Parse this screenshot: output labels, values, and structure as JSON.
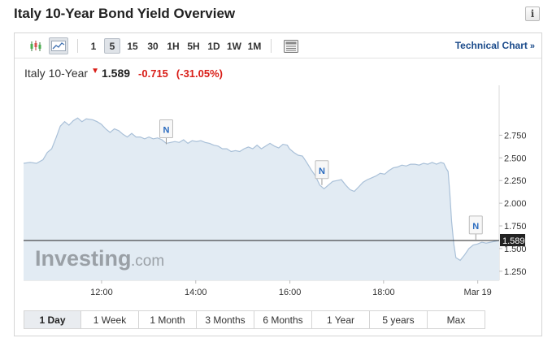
{
  "page": {
    "title": "Italy 10-Year Bond Yield Overview"
  },
  "info_button": {
    "label": "i"
  },
  "toolbar": {
    "chart_styles": [
      "candlestick-icon",
      "area-chart-icon"
    ],
    "ranges": [
      {
        "label": "1",
        "active": false
      },
      {
        "label": "5",
        "active": true
      },
      {
        "label": "15",
        "active": false
      },
      {
        "label": "30",
        "active": false
      },
      {
        "label": "1H",
        "active": false
      },
      {
        "label": "5H",
        "active": false
      },
      {
        "label": "1D",
        "active": false
      },
      {
        "label": "1W",
        "active": false
      },
      {
        "label": "1M",
        "active": false
      }
    ],
    "technical_chart_label": "Technical Chart",
    "technical_chart_chevron": "»"
  },
  "quote": {
    "name": "Italy 10-Year",
    "arrow": "▼",
    "price": "1.589",
    "change": "-0.715",
    "change_pct": "(-31.05%)"
  },
  "watermark": {
    "brand": "Investing",
    "suffix": ".com"
  },
  "chart_data": {
    "type": "area",
    "ylim": [
      1.15,
      3.3
    ],
    "y_ticks": [
      "2.750",
      "2.500",
      "2.250",
      "2.000",
      "1.750",
      "1.500",
      "1.250"
    ],
    "y_tick_values": [
      2.75,
      2.5,
      2.25,
      2.0,
      1.75,
      1.5,
      1.25
    ],
    "x_ticks": [
      "12:00",
      "14:00",
      "16:00",
      "18:00",
      "Mar 19"
    ],
    "x_tick_positions": [
      0.164,
      0.362,
      0.56,
      0.757,
      0.955
    ],
    "current_value": 1.589,
    "current_label": "1.589",
    "news_markers": [
      {
        "label": "N",
        "x": 0.33,
        "y": 2.65
      },
      {
        "label": "N",
        "x": 0.69,
        "y": 2.2
      },
      {
        "label": "N",
        "x": 1.046,
        "y": 1.59
      }
    ],
    "series": [
      {
        "values": [
          [
            0.0,
            2.44
          ],
          [
            0.015,
            2.45
          ],
          [
            0.03,
            2.44
          ],
          [
            0.045,
            2.48
          ],
          [
            0.055,
            2.56
          ],
          [
            0.065,
            2.6
          ],
          [
            0.075,
            2.72
          ],
          [
            0.085,
            2.85
          ],
          [
            0.095,
            2.9
          ],
          [
            0.105,
            2.86
          ],
          [
            0.115,
            2.91
          ],
          [
            0.125,
            2.94
          ],
          [
            0.135,
            2.9
          ],
          [
            0.145,
            2.93
          ],
          [
            0.16,
            2.92
          ],
          [
            0.17,
            2.9
          ],
          [
            0.18,
            2.87
          ],
          [
            0.19,
            2.82
          ],
          [
            0.2,
            2.78
          ],
          [
            0.21,
            2.82
          ],
          [
            0.22,
            2.8
          ],
          [
            0.23,
            2.76
          ],
          [
            0.24,
            2.73
          ],
          [
            0.25,
            2.77
          ],
          [
            0.26,
            2.73
          ],
          [
            0.27,
            2.73
          ],
          [
            0.28,
            2.71
          ],
          [
            0.29,
            2.73
          ],
          [
            0.3,
            2.71
          ],
          [
            0.31,
            2.72
          ],
          [
            0.32,
            2.7
          ],
          [
            0.33,
            2.66
          ],
          [
            0.34,
            2.67
          ],
          [
            0.35,
            2.68
          ],
          [
            0.36,
            2.67
          ],
          [
            0.37,
            2.7
          ],
          [
            0.38,
            2.66
          ],
          [
            0.39,
            2.69
          ],
          [
            0.4,
            2.68
          ],
          [
            0.41,
            2.69
          ],
          [
            0.42,
            2.67
          ],
          [
            0.43,
            2.66
          ],
          [
            0.44,
            2.64
          ],
          [
            0.45,
            2.63
          ],
          [
            0.46,
            2.6
          ],
          [
            0.47,
            2.6
          ],
          [
            0.48,
            2.57
          ],
          [
            0.49,
            2.58
          ],
          [
            0.5,
            2.57
          ],
          [
            0.51,
            2.6
          ],
          [
            0.52,
            2.62
          ],
          [
            0.53,
            2.6
          ],
          [
            0.54,
            2.64
          ],
          [
            0.55,
            2.6
          ],
          [
            0.56,
            2.63
          ],
          [
            0.57,
            2.66
          ],
          [
            0.58,
            2.63
          ],
          [
            0.59,
            2.61
          ],
          [
            0.6,
            2.65
          ],
          [
            0.61,
            2.64
          ],
          [
            0.615,
            2.6
          ],
          [
            0.625,
            2.56
          ],
          [
            0.635,
            2.53
          ],
          [
            0.645,
            2.52
          ],
          [
            0.655,
            2.45
          ],
          [
            0.665,
            2.37
          ],
          [
            0.675,
            2.3
          ],
          [
            0.685,
            2.2
          ],
          [
            0.695,
            2.16
          ],
          [
            0.705,
            2.2
          ],
          [
            0.715,
            2.24
          ],
          [
            0.725,
            2.25
          ],
          [
            0.735,
            2.26
          ],
          [
            0.745,
            2.2
          ],
          [
            0.755,
            2.15
          ],
          [
            0.765,
            2.13
          ],
          [
            0.775,
            2.18
          ],
          [
            0.785,
            2.23
          ],
          [
            0.795,
            2.26
          ],
          [
            0.805,
            2.28
          ],
          [
            0.815,
            2.3
          ],
          [
            0.825,
            2.33
          ],
          [
            0.835,
            2.32
          ],
          [
            0.845,
            2.36
          ],
          [
            0.855,
            2.39
          ],
          [
            0.865,
            2.4
          ],
          [
            0.875,
            2.42
          ],
          [
            0.885,
            2.41
          ],
          [
            0.895,
            2.43
          ],
          [
            0.905,
            2.43
          ],
          [
            0.915,
            2.42
          ],
          [
            0.925,
            2.44
          ],
          [
            0.935,
            2.43
          ],
          [
            0.945,
            2.45
          ],
          [
            0.955,
            2.43
          ],
          [
            0.965,
            2.45
          ],
          [
            0.972,
            2.44
          ],
          [
            0.978,
            2.38
          ],
          [
            0.982,
            2.35
          ],
          [
            0.986,
            2.1
          ],
          [
            0.99,
            1.8
          ],
          [
            0.995,
            1.55
          ],
          [
            1.0,
            1.4
          ],
          [
            1.01,
            1.37
          ],
          [
            1.02,
            1.43
          ],
          [
            1.03,
            1.5
          ],
          [
            1.04,
            1.54
          ],
          [
            1.05,
            1.55
          ],
          [
            1.06,
            1.57
          ],
          [
            1.07,
            1.56
          ],
          [
            1.08,
            1.57
          ],
          [
            1.09,
            1.58
          ],
          [
            1.1,
            1.59
          ]
        ]
      }
    ]
  },
  "periods": [
    {
      "label": "1 Day",
      "active": true
    },
    {
      "label": "1 Week",
      "active": false
    },
    {
      "label": "1 Month",
      "active": false
    },
    {
      "label": "3 Months",
      "active": false
    },
    {
      "label": "6 Months",
      "active": false
    },
    {
      "label": "1 Year",
      "active": false
    },
    {
      "label": "5 years",
      "active": false
    },
    {
      "label": "Max",
      "active": false
    }
  ]
}
